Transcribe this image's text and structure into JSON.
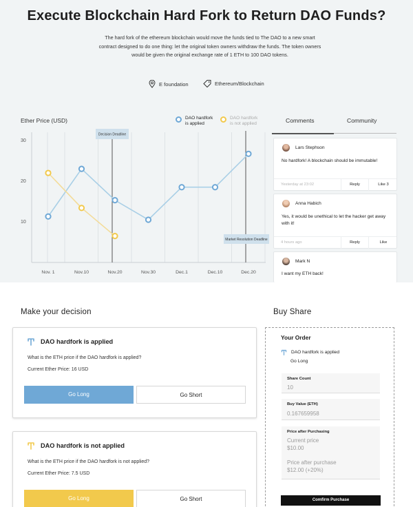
{
  "header": {
    "title": "Execute Blockchain Hard Fork to Return DAO Funds?",
    "description": "The hard fork of the ethereum blockchain would move the funds tied to The DAO to a new smart contract designed to do one thing: let the original token owners withdraw the funds. The token owners would be given the original exchange rate of 1 ETH to 100 DAO tokens.",
    "location": "E foundation",
    "tag": "Ethereum/Blockchain"
  },
  "chart_data": {
    "type": "line",
    "title": "Ether Price (USD)",
    "categories": [
      "Nov. 1",
      "Nov.10",
      "Nov.20",
      "Nov.30",
      "Dec.1",
      "Dec.10",
      "Dec.20"
    ],
    "ylim": [
      0,
      32
    ],
    "yticks": [
      10,
      20,
      30
    ],
    "series": [
      {
        "name": "DAO hardfork is applied",
        "color": "#a9cfe6",
        "dot": "#6fa8d6",
        "values": [
          11.3,
          23,
          15.3,
          10.5,
          18.5,
          18.5,
          26.7
        ]
      },
      {
        "name": "DAO hardfork is not applied",
        "color": "#f3dc9a",
        "dot": "#f2c94c",
        "values": [
          22,
          13.4,
          6.5,
          null,
          null,
          null,
          null
        ]
      }
    ],
    "annotations": [
      {
        "label": "Decision Deadline",
        "category_index": 2
      },
      {
        "label": "Market Resolution Deadline",
        "category_index": 6
      }
    ],
    "grid": "vertical"
  },
  "legend": {
    "applied": {
      "line1": "DAO hardfork",
      "line2": "is applied"
    },
    "not_applied": {
      "line1": "DAO hardfork",
      "line2": "is not applied"
    }
  },
  "tabs": [
    {
      "label": "Comments"
    },
    {
      "label": "Community"
    }
  ],
  "comments": [
    {
      "author": "Lars Stephson",
      "text": "No hardfork! A blockchain should be immutable!",
      "time": "Yesterday at 23:02",
      "reply": "Reply",
      "like": "Like 3"
    },
    {
      "author": "Anna Habich",
      "text": "Yes, it would be unethical to let the hacker get away with it!",
      "time": "4 hours ago",
      "reply": "Reply",
      "like": "Like"
    },
    {
      "author": "Mark N",
      "text": "I want my ETH back!"
    }
  ],
  "decision": {
    "title": "Make your decision",
    "cards": [
      {
        "heading": "DAO hardfork is applied",
        "question": "What is the ETH price if the DAO hardfork is applied?",
        "price": "Current Ether Price: 16 USD",
        "long": "Go Long",
        "short": "Go Short",
        "color": "#6fa8d6"
      },
      {
        "heading": "DAO hardfork is not applied",
        "question": "What is the ETH price if the DAO hardfork is not applied?",
        "price": "Current Ether Price: 7.5 USD",
        "long": "Go Long",
        "short": "Go Short",
        "color": "#f2c94c"
      }
    ]
  },
  "buy": {
    "title": "Buy Share",
    "order_title": "Your Order",
    "selection": "DAO hardfork is applied",
    "position": "Go Long",
    "share_count_label": "Share Count",
    "share_count": "10",
    "buy_value_label": "Buy Value (ETH)",
    "buy_value": "0.167659958",
    "price_label": "Price after Purchasing",
    "current_price_label": "Current price",
    "current_price": "$10.00",
    "after_price_label": "Price after purchase",
    "after_price": "$12.00 (+20%)",
    "confirm": "Comfirm Purchase"
  }
}
